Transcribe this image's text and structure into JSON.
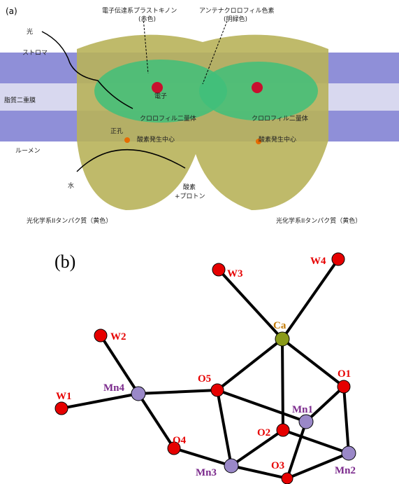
{
  "panel_a": {
    "label": "(a)",
    "light": "光",
    "stroma": "ストロマ",
    "membrane": "脂質二重膜",
    "lumen": "ルーメン",
    "quinone": [
      "電子伝達系プラストキノン",
      "(赤色)"
    ],
    "antenna": [
      "アンテナクロロフィル色素",
      "(明緑色)"
    ],
    "electron": "電子",
    "dimer": [
      "クロロフィル二量体",
      "クロロフィル二量体"
    ],
    "hole": "正孔",
    "oec": [
      "酸素発生中心",
      "酸素発生中心"
    ],
    "water": "水",
    "oxygen": [
      "酸素",
      "+プロトン"
    ],
    "protein": [
      "光化学系IIタンパク質（黄色）",
      "光化学系IIタンパク質（黄色）"
    ]
  },
  "panel_b": {
    "label": "(b)",
    "nodes": [
      "W3",
      "W4",
      "Ca",
      "W2",
      "O1",
      "O5",
      "Mn4",
      "W1",
      "Mn1",
      "O2",
      "O4",
      "Mn2",
      "Mn3",
      "O3"
    ]
  }
}
